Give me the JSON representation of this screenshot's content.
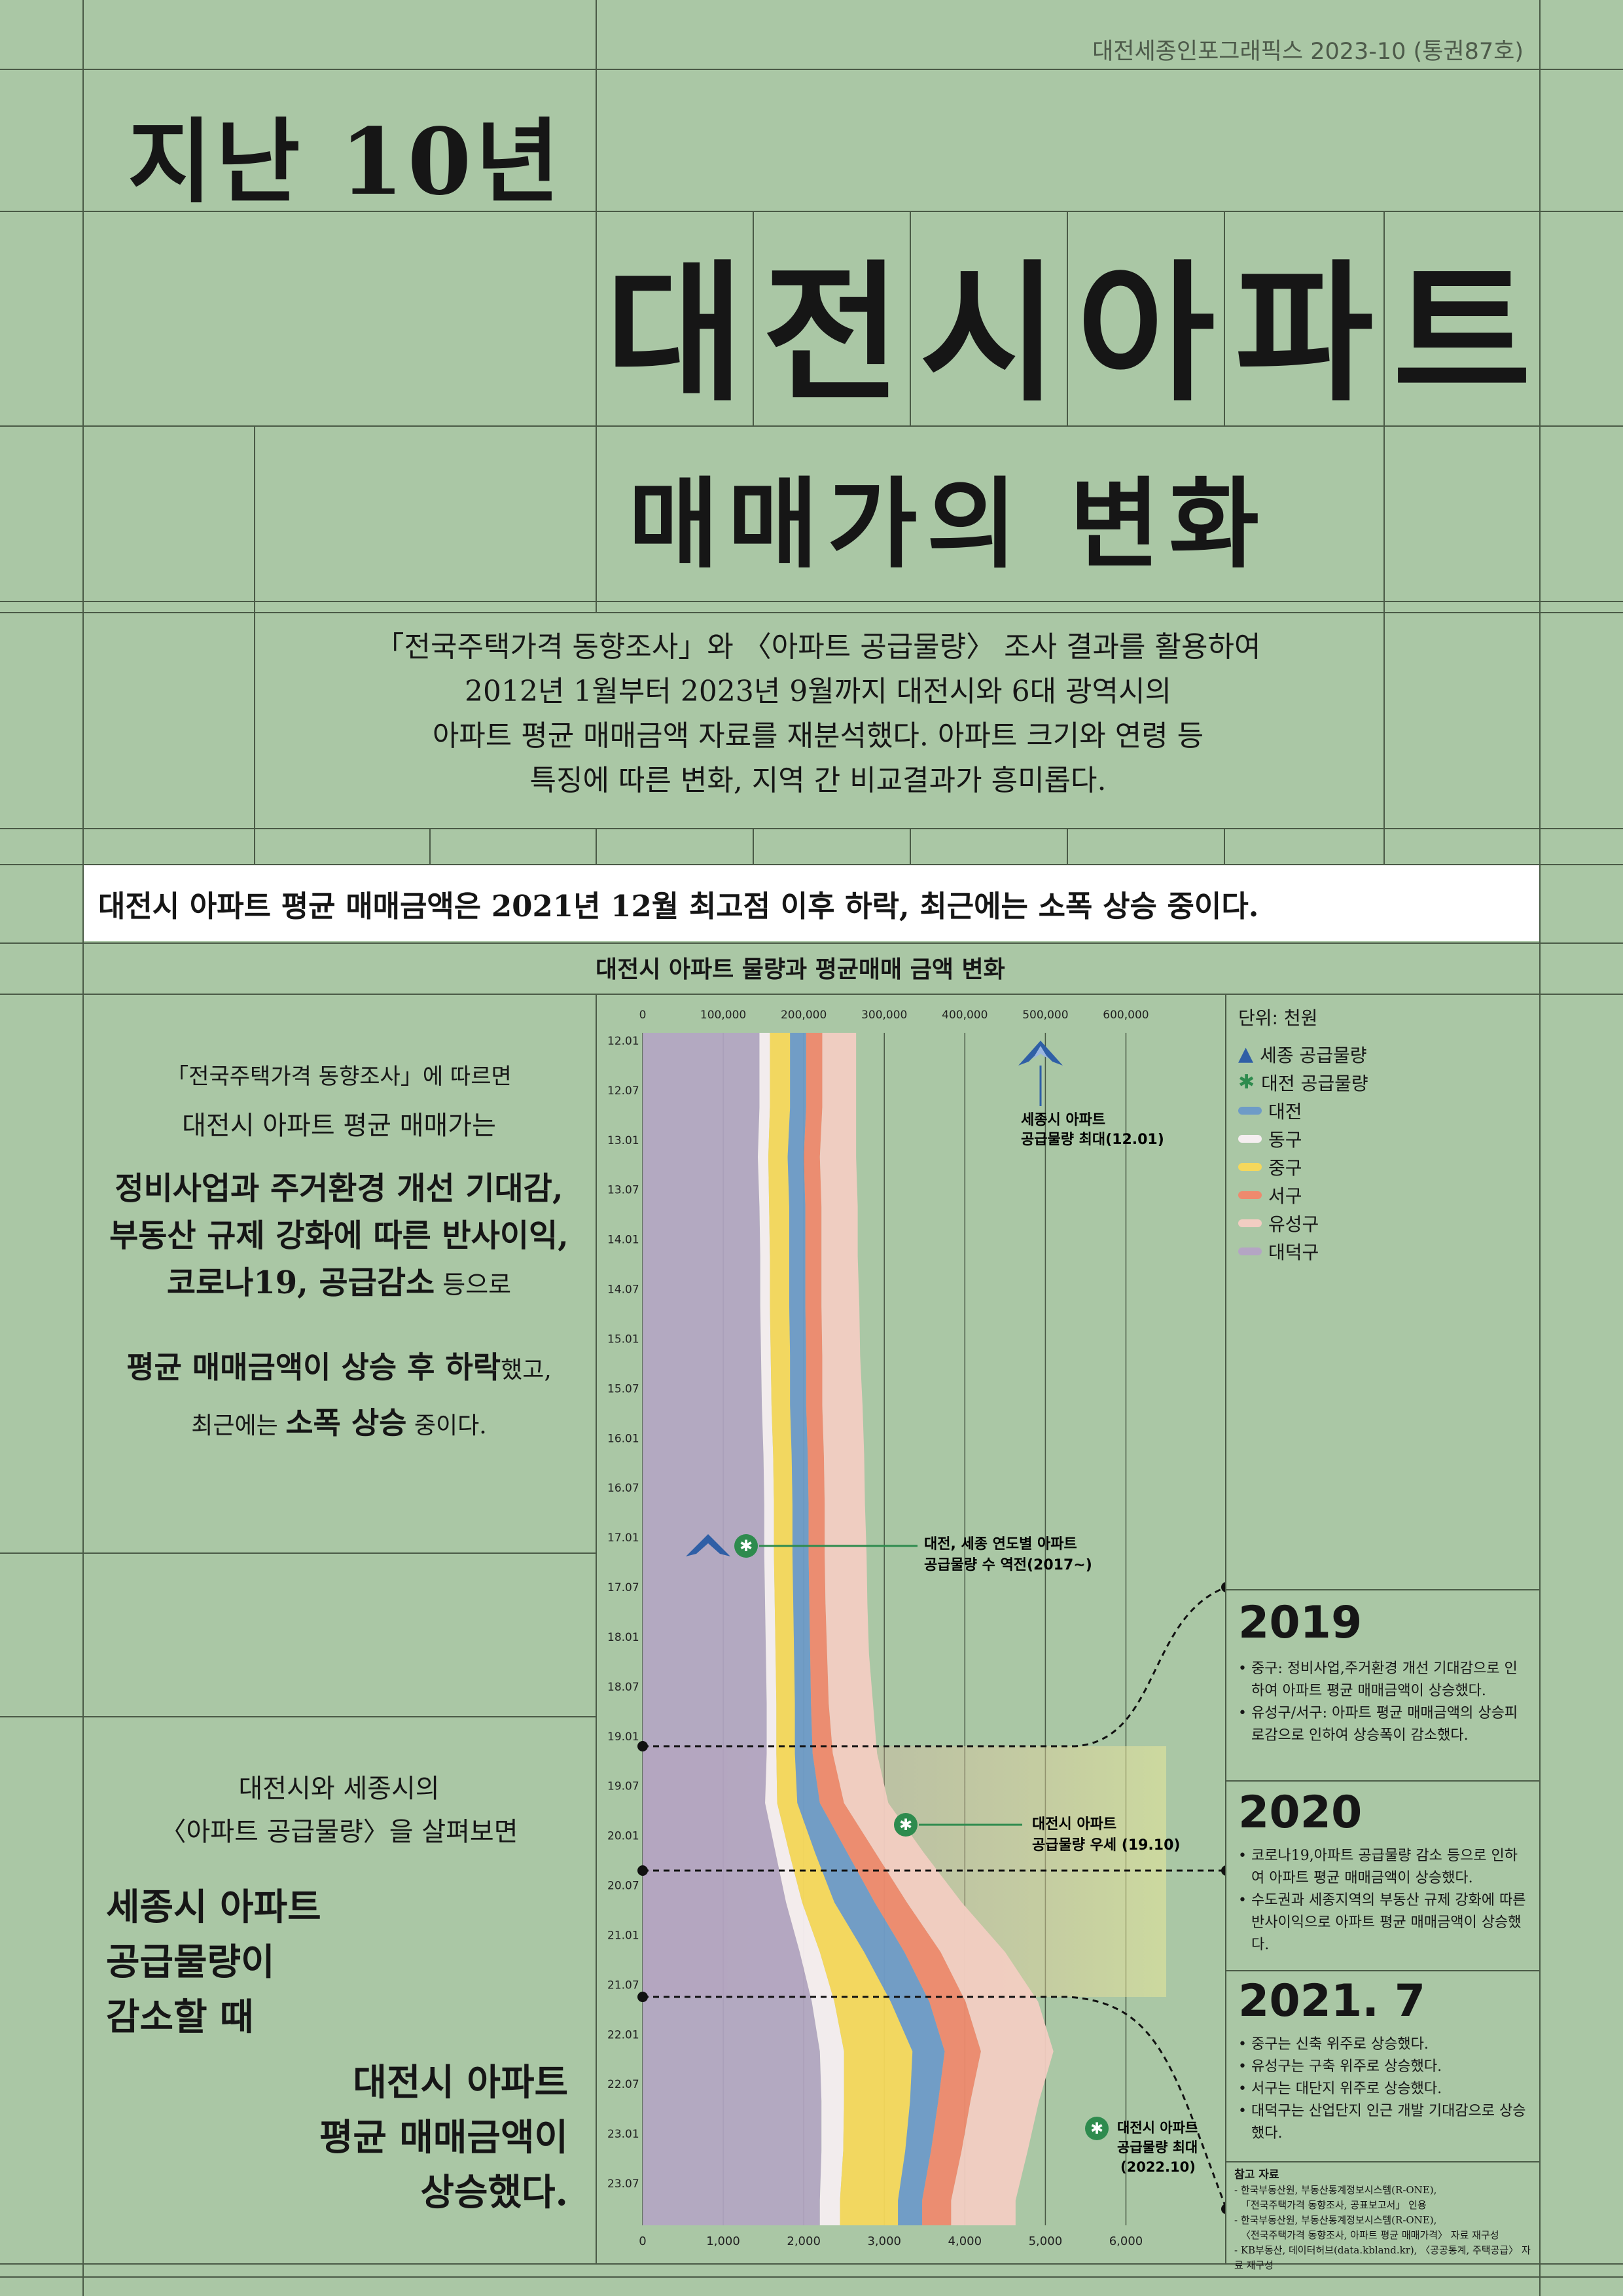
{
  "header": {
    "issue": "대전세종인포그래픽스 2023-10 (통권87호)",
    "title_line1": "지난 10년",
    "title_chars": [
      "대",
      "전",
      "시",
      "아",
      "파",
      "트"
    ],
    "title_line3": "매매가의 변화"
  },
  "intro": {
    "lines": [
      "「전국주택가격 동향조사」와 〈아파트 공급물량〉 조사 결과를 활용하여",
      "2012년 1월부터 2023년 9월까지 대전시와 6대 광역시의",
      "아파트 평균 매매금액 자료를 재분석했다. 아파트 크기와 연령 등",
      "특징에 따른 변화, 지역 간 비교결과가 흥미롭다."
    ]
  },
  "banner": "대전시 아파트 평균 매매금액은 2021년 12월 최고점 이후 하락, 최근에는 소폭 상승 중이다.",
  "left_panel_1": {
    "line1": "「전국주택가격 동향조사」에 따르면",
    "line2": "대전시 아파트 평균 매매가는",
    "line3": "정비사업과 주거환경 개선 기대감,",
    "line4": "부동산 규제 강화에 따른 반사이익,",
    "line5a": "코로나19, 공급감소",
    "line5b": " 등으로",
    "line6a": "평균 매매금액이 상승 후 하락",
    "line6b": "했고,",
    "line7a": "최근에는 ",
    "line7b": "소폭 상승",
    "line7c": " 중이다."
  },
  "left_panel_2": {
    "line1": "대전시와 세종시의",
    "line2": "〈아파트 공급물량〉을 살펴보면",
    "big1": "세종시 아파트",
    "big2": "공급물량이",
    "big3": "감소할 때",
    "big4": "대전시 아파트",
    "big5": "평균 매매금액이",
    "big6": "상승했다."
  },
  "legend": {
    "unit": "단위: 천원",
    "items": [
      {
        "name": "세종 공급물량",
        "icon": "sejong-mark-icon",
        "color": "#2f5fa6"
      },
      {
        "name": "대전 공급물량",
        "icon": "daejeon-mark-icon",
        "color": "#2e8b4e"
      },
      {
        "name": "대전",
        "color": "#6e9bc7"
      },
      {
        "name": "동구",
        "color": "#f5eef0"
      },
      {
        "name": "중구",
        "color": "#f5d85c"
      },
      {
        "name": "서구",
        "color": "#ee8a6e"
      },
      {
        "name": "유성구",
        "color": "#f2cdc2"
      },
      {
        "name": "대덕구",
        "color": "#b4a5c4"
      }
    ]
  },
  "notes": [
    {
      "year": "2019",
      "items": [
        "중구: 정비사업,주거환경 개선 기대감으로 인하여 아파트 평균 매매금액이 상승했다.",
        "유성구/서구: 아파트 평균 매매금액의 상승피로감으로 인하여 상승폭이 감소했다."
      ]
    },
    {
      "year": "2020",
      "items": [
        "코로나19,아파트 공급물량 감소 등으로 인하여 아파트 평균 매매금액이 상승했다.",
        "수도권과 세종지역의 부동산 규제 강화에 따른 반사이익으로 아파트 평균 매매금액이 상승했다."
      ]
    },
    {
      "year": "2021. 7",
      "items": [
        "중구는 신축 위주로 상승했다.",
        "유성구는 구축 위주로 상승했다.",
        "서구는 대단지 위주로 상승했다.",
        "대덕구는 산업단지 인근 개발 기대감으로 상승했다."
      ]
    }
  ],
  "sources": {
    "title": "참고 자료",
    "lines": [
      "- 한국부동산원, 부동산통계정보시스템(R-ONE),",
      "「전국주택가격 동향조사, 공표보고서」 인용",
      "- 한국부동산원, 부동산통계정보시스템(R-ONE),",
      "〈전국주택가격 동향조사, 아파트 평균 매매가격〉 자료 재구성",
      "- KB부동산, 데이터허브(data.kbland.kr), 〈공공통계, 주택공급〉 자료 재구성"
    ]
  },
  "annotations": {
    "sejong_max": [
      "세종시 아파트",
      "공급물량 최대(12.01)"
    ],
    "reversal": [
      "대전, 세종 연도별 아파트",
      "공급물량 수 역전(2017~)"
    ],
    "daejeon_dominant": [
      "대전시 아파트",
      "공급물량 우세 (19.10)"
    ],
    "daejeon_max": [
      "대전시 아파트",
      "공급물량 최대",
      "(2022.10)"
    ]
  },
  "chart_data": {
    "type": "area",
    "title": "대전시 아파트 물량과 평균매매 금액 변화",
    "top_axis_ticks": [
      "0",
      "100,000",
      "200,000",
      "300,000",
      "400,000",
      "500,000",
      "600,000"
    ],
    "bottom_axis_ticks": [
      "0",
      "1,000",
      "2,000",
      "3,000",
      "4,000",
      "5,000",
      "6,000"
    ],
    "y_ticks": [
      "12.01",
      "12.07",
      "13.01",
      "13.07",
      "14.01",
      "14.07",
      "15.01",
      "15.07",
      "16.01",
      "16.07",
      "17.01",
      "17.07",
      "18.01",
      "18.07",
      "19.01",
      "19.07",
      "20.01",
      "20.07",
      "21.01",
      "21.07",
      "22.01",
      "22.07",
      "23.01",
      "23.07"
    ],
    "orientation": "vertical-time",
    "series_order": [
      "대덕구",
      "동구",
      "중구",
      "대전",
      "서구",
      "유성구"
    ],
    "series": [
      {
        "name": "대덕구",
        "values": [
          145,
          145,
          143,
          145,
          146,
          146,
          147,
          148,
          150,
          151,
          151,
          152,
          153,
          154,
          154,
          152,
          165,
          178,
          195,
          210,
          220,
          222,
          222,
          220
        ]
      },
      {
        "name": "동구",
        "values": [
          13,
          13,
          13,
          12,
          12,
          12,
          12,
          12,
          12,
          12,
          12,
          12,
          12,
          12,
          12,
          15,
          17,
          20,
          25,
          28,
          30,
          28,
          27,
          25
        ]
      },
      {
        "name": "중구",
        "values": [
          25,
          25,
          24,
          25,
          24,
          24,
          24,
          23,
          23,
          23,
          23,
          23,
          23,
          23,
          23,
          25,
          32,
          40,
          55,
          70,
          85,
          82,
          77,
          72
        ]
      },
      {
        "name": "대전",
        "values": [
          20,
          20,
          20,
          20,
          20,
          20,
          20,
          20,
          20,
          20,
          20,
          20,
          20,
          20,
          22,
          28,
          40,
          50,
          50,
          48,
          40,
          35,
          32,
          30
        ]
      },
      {
        "name": "서구",
        "values": [
          20,
          20,
          20,
          20,
          20,
          20,
          20,
          20,
          20,
          20,
          20,
          20,
          21,
          22,
          25,
          30,
          35,
          40,
          45,
          45,
          45,
          40,
          38,
          36
        ]
      },
      {
        "name": "유성구",
        "values": [
          42,
          42,
          45,
          45,
          45,
          47,
          47,
          50,
          50,
          50,
          52,
          52,
          52,
          55,
          55,
          55,
          60,
          68,
          80,
          90,
          90,
          85,
          82,
          80
        ]
      }
    ]
  }
}
